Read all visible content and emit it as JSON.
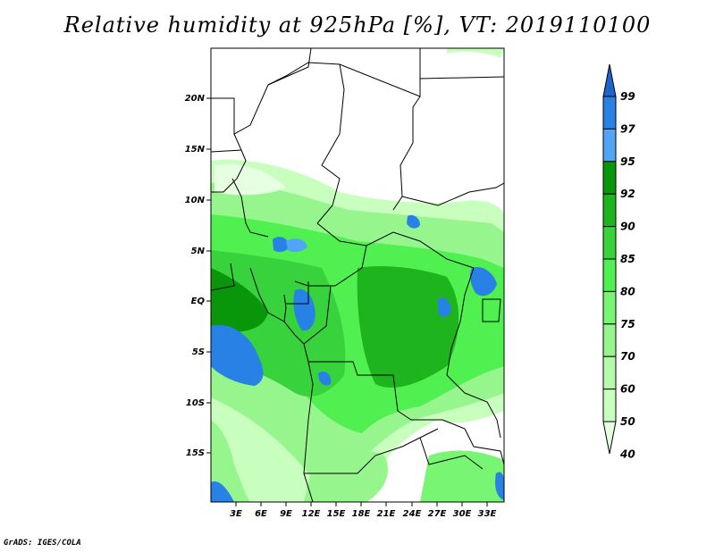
{
  "title": "Relative humidity at 925hPa [%], VT: 2019110100",
  "credit": "GrADS: IGES/COLA",
  "map": {
    "lat_labels": [
      "20N",
      "15N",
      "10N",
      "5N",
      "EQ",
      "5S",
      "10S",
      "15S"
    ],
    "lon_labels": [
      "3E",
      "6E",
      "9E",
      "12E",
      "15E",
      "18E",
      "21E",
      "24E",
      "27E",
      "30E",
      "33E"
    ]
  },
  "colorbar": {
    "labels": [
      "99",
      "97",
      "95",
      "92",
      "90",
      "85",
      "80",
      "75",
      "70",
      "60",
      "50",
      "40"
    ],
    "colors": [
      "#1e64cd",
      "#2882e6",
      "#50a5f5",
      "#0a960a",
      "#1eb41e",
      "#37d23c",
      "#50f050",
      "#78f573",
      "#96f58c",
      "#b4faaa",
      "#c8ffbe",
      "#e6ffe1"
    ]
  }
}
